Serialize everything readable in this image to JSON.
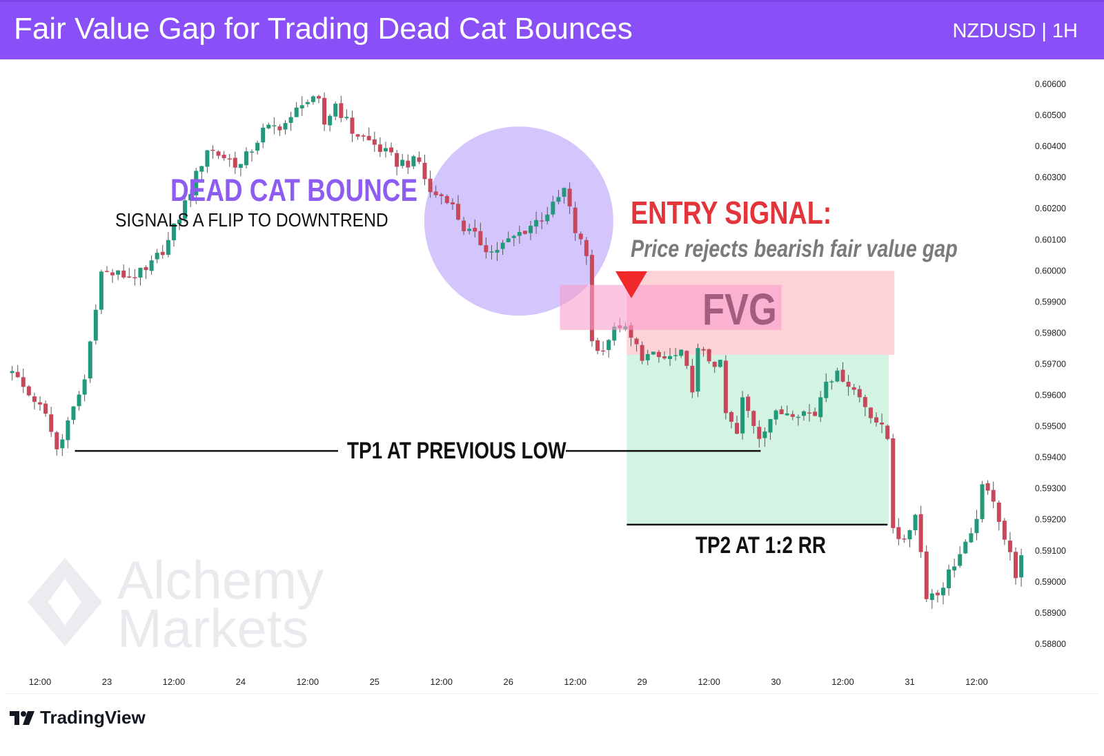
{
  "header": {
    "title": "Fair Value Gap for Trading Dead Cat Bounces",
    "symbol": "NZDUSD | 1H"
  },
  "annotations": {
    "dead_cat_bounce": "DEAD CAT BOUNCE",
    "signals_flip": "SIGNALS A FLIP TO DOWNTREND",
    "entry_signal": "ENTRY SIGNAL:",
    "price_rejects": "Price rejects bearish fair value gap",
    "fvg": "FVG",
    "tp1": "TP1 AT PREVIOUS LOW",
    "tp2": "TP2 AT 1:2 RR"
  },
  "watermark": {
    "line1": "Alchemy",
    "line2": "Markets"
  },
  "footer": {
    "brand": "TradingView"
  },
  "colors": {
    "header": "#8a50f7",
    "bull": "#22997a",
    "bear": "#c8485b",
    "stop_zone": "#fdd3d7",
    "target_zone": "#d3f3e3",
    "fvg": "#f99ccb",
    "circle": "#c3b0fb",
    "entry_arrow": "#f0282a"
  },
  "chart_data": {
    "type": "candlestick",
    "title": "Fair Value Gap for Trading Dead Cat Bounces",
    "symbol": "NZDUSD",
    "timeframe": "1H",
    "ylim": [
      0.5875,
      0.6065
    ],
    "y_ticks": [
      "0.60600",
      "0.60500",
      "0.60400",
      "0.60300",
      "0.60200",
      "0.60100",
      "0.60000",
      "0.59900",
      "0.59800",
      "0.59700",
      "0.59600",
      "0.59500",
      "0.59400",
      "0.59300",
      "0.59200",
      "0.59100",
      "0.59000",
      "0.58900",
      "0.58800"
    ],
    "x_ticks": [
      {
        "hour": 0,
        "label": "12:00"
      },
      {
        "hour": 12,
        "label": "23"
      },
      {
        "hour": 24,
        "label": "12:00"
      },
      {
        "hour": 36,
        "label": "24"
      },
      {
        "hour": 48,
        "label": "12:00"
      },
      {
        "hour": 60,
        "label": "25"
      },
      {
        "hour": 72,
        "label": "12:00"
      },
      {
        "hour": 84,
        "label": "26"
      },
      {
        "hour": 96,
        "label": "12:00"
      },
      {
        "hour": 108,
        "label": "29"
      },
      {
        "hour": 120,
        "label": "12:00"
      },
      {
        "hour": 132,
        "label": "30"
      },
      {
        "hour": 144,
        "label": "12:00"
      },
      {
        "hour": 156,
        "label": "31"
      },
      {
        "hour": 168,
        "label": "12:00"
      }
    ],
    "hour_range": [
      -5,
      176
    ],
    "close_path": [
      [
        -5,
        0.59672
      ],
      [
        -2,
        0.59594
      ],
      [
        0,
        0.59583
      ],
      [
        3,
        0.59428
      ],
      [
        5,
        0.59506
      ],
      [
        8,
        0.5965
      ],
      [
        10,
        0.59894
      ],
      [
        11,
        0.59994
      ],
      [
        16,
        0.59983
      ],
      [
        19,
        0.59994
      ],
      [
        23,
        0.60094
      ],
      [
        26,
        0.60216
      ],
      [
        30,
        0.60394
      ],
      [
        36,
        0.60338
      ],
      [
        40,
        0.60449
      ],
      [
        45,
        0.60482
      ],
      [
        47,
        0.60549
      ],
      [
        50,
        0.60538
      ],
      [
        51,
        0.60471
      ],
      [
        53,
        0.60538
      ],
      [
        56,
        0.60449
      ],
      [
        60,
        0.60405
      ],
      [
        64,
        0.60349
      ],
      [
        68,
        0.60349
      ],
      [
        70,
        0.60249
      ],
      [
        73,
        0.60238
      ],
      [
        76,
        0.60138
      ],
      [
        81,
        0.60061
      ],
      [
        84,
        0.60094
      ],
      [
        89,
        0.6016
      ],
      [
        92,
        0.60205
      ],
      [
        94,
        0.6026
      ],
      [
        96,
        0.60127
      ],
      [
        98,
        0.60049
      ],
      [
        99,
        0.59783
      ],
      [
        100,
        0.59739
      ],
      [
        104,
        0.59828
      ],
      [
        105,
        0.59805
      ],
      [
        108,
        0.59728
      ],
      [
        112,
        0.59717
      ],
      [
        115,
        0.59728
      ],
      [
        117,
        0.59628
      ],
      [
        118,
        0.59739
      ],
      [
        122,
        0.59694
      ],
      [
        123,
        0.59539
      ],
      [
        125,
        0.59472
      ],
      [
        126,
        0.59583
      ],
      [
        129,
        0.59472
      ],
      [
        131,
        0.59528
      ],
      [
        134,
        0.5955
      ],
      [
        136,
        0.5955
      ],
      [
        139,
        0.59539
      ],
      [
        141,
        0.59661
      ],
      [
        144,
        0.59661
      ],
      [
        147,
        0.59594
      ],
      [
        150,
        0.59517
      ],
      [
        152,
        0.59461
      ],
      [
        153,
        0.59184
      ],
      [
        155,
        0.59117
      ],
      [
        157,
        0.59228
      ],
      [
        159,
        0.58962
      ],
      [
        161,
        0.58962
      ],
      [
        164,
        0.59062
      ],
      [
        167,
        0.59139
      ],
      [
        169,
        0.59295
      ],
      [
        171,
        0.59273
      ],
      [
        173,
        0.59139
      ],
      [
        175,
        0.59028
      ],
      [
        176,
        0.59072
      ]
    ],
    "fvg_zone": {
      "top": 0.59955,
      "bottom": 0.5981,
      "from_hour": 94,
      "to_hour": 133
    },
    "entry": {
      "hour": 106,
      "price": 0.5973
    },
    "stop_zone": {
      "top": 0.6,
      "bottom": 0.5973,
      "from_hour": 105,
      "to_hour": 153
    },
    "target_zone": {
      "top": 0.5973,
      "bottom": 0.59184,
      "from_hour": 105,
      "to_hour": 152
    },
    "tp1": {
      "price": 0.59421,
      "from_hour": 6,
      "to_hour": 129
    },
    "tp2": {
      "price": 0.59184,
      "from_hour": 105,
      "to_hour": 153
    },
    "dead_cat_bounce_region": {
      "center_hour": 86,
      "center_price": 0.6016
    }
  }
}
